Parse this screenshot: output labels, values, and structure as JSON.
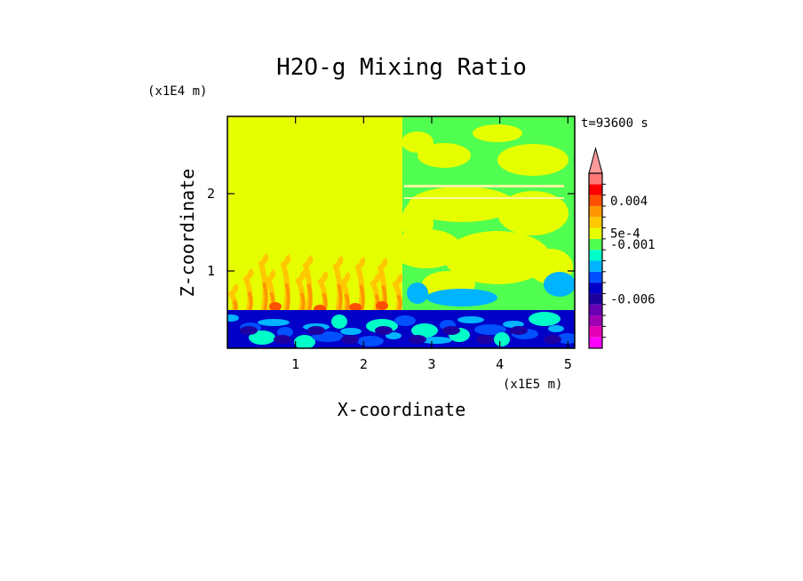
{
  "chart_data": {
    "type": "heatmap",
    "title": "H2O-g Mixing Ratio",
    "xlabel": "X-coordinate",
    "ylabel": "Z-coordinate",
    "x_scale_label": "(x1E5 m)",
    "y_scale_label": "(x1E4 m)",
    "time_label": "t=93600 s",
    "xlim": [
      0,
      5.1
    ],
    "ylim": [
      0,
      3.0
    ],
    "x_ticks": [
      1,
      2,
      3,
      4,
      5
    ],
    "y_ticks": [
      1,
      2
    ],
    "x_tick_labels": [
      "1",
      "2",
      "3",
      "4",
      "5"
    ],
    "y_tick_labels": [
      "1",
      "2"
    ],
    "colorbar": {
      "levels": [
        {
          "color": "#ff00ff"
        },
        {
          "color": "#e600b4"
        },
        {
          "color": "#a000b4"
        },
        {
          "color": "#6a00b4"
        },
        {
          "color": "#1e00a0"
        },
        {
          "color": "#0000c8"
        },
        {
          "color": "#0050ff"
        },
        {
          "color": "#00b4ff"
        },
        {
          "color": "#00ffc8"
        },
        {
          "color": "#50ff50"
        },
        {
          "color": "#e6ff00"
        },
        {
          "color": "#ffc800"
        },
        {
          "color": "#ff9600"
        },
        {
          "color": "#ff5000"
        },
        {
          "color": "#ff0000"
        },
        {
          "color": "#ff7878"
        }
      ],
      "over_color": "#ff9a9a",
      "tick_labels": [
        {
          "value": 0.004,
          "label": "0.004"
        },
        {
          "value": 0.0005,
          "label": "5e-4"
        },
        {
          "value": -0.001,
          "label": "-0.001"
        },
        {
          "value": -0.006,
          "label": "-0.006"
        }
      ]
    },
    "regions": [
      {
        "name": "upper-left",
        "dominant_color": "#e6ff00"
      },
      {
        "name": "upper-right",
        "dominant_colors": [
          "#50ff50",
          "#e6ff00"
        ]
      },
      {
        "name": "lower-layer",
        "dominant_colors": [
          "#0000c8",
          "#0050ff",
          "#00b4ff"
        ]
      }
    ]
  }
}
